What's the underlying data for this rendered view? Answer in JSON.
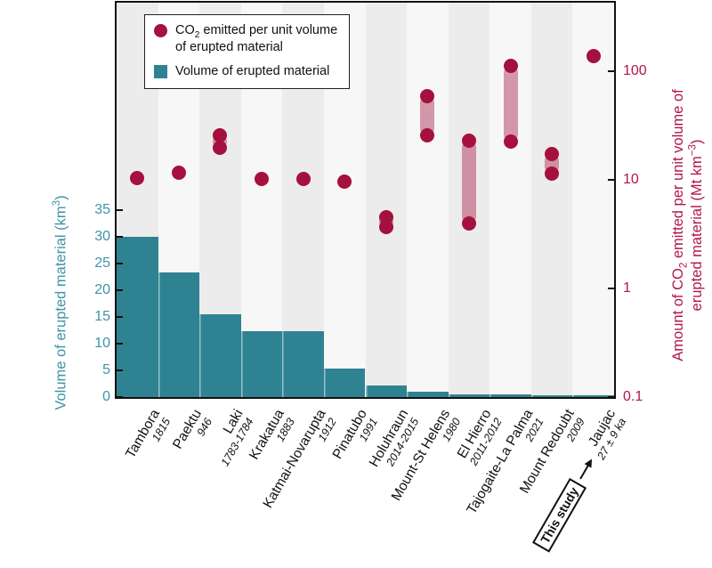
{
  "figure": {
    "description": "Comparison of erupted volume and CO2 emitted per unit volume for major volcanic eruptions"
  },
  "colors": {
    "bar_teal": "#2f8292",
    "dot_crimson": "#a5103e",
    "band_pink": "rgba(165,16,62,0.42)",
    "left_axis_text": "#3f93a8",
    "right_axis_text": "#b2164a",
    "stripe_dark": "#ececec",
    "stripe_light": "#f7f7f7",
    "axis_line": "#111111"
  },
  "legend": {
    "items": [
      {
        "marker": "circle",
        "color": "#a5103e",
        "segments": [
          {
            "t": "CO"
          },
          {
            "t": "2",
            "sub": true
          },
          {
            "t": " emitted per unit volume of erupted material"
          }
        ]
      },
      {
        "marker": "square",
        "color": "#2f8292",
        "segments": [
          {
            "t": "Volume of erupted material"
          }
        ]
      }
    ]
  },
  "left_axis_title_segments": [
    {
      "t": "Volume of erupted material (km"
    },
    {
      "t": "3",
      "sup": true
    },
    {
      "t": ")"
    }
  ],
  "right_axis_title_line1_segments": [
    {
      "t": "Amount of CO"
    },
    {
      "t": "2",
      "sub": true
    },
    {
      "t": " emitted per unit volume of"
    }
  ],
  "right_axis_title_line2_segments": [
    {
      "t": "erupted material (Mt km"
    },
    {
      "t": "−3",
      "sup": true
    },
    {
      "t": ")"
    }
  ],
  "annotation": {
    "label": "This study",
    "target_category": "Jaujac"
  },
  "chart_data": {
    "type": "combo-bar-scatter-dual-axis",
    "categories": [
      "Tambora",
      "Paektu",
      "Laki",
      "Krakatua",
      "Katmai-Novarupta",
      "Pinatubo",
      "Holuhraun",
      "Mount-St Helens",
      "El Hierro",
      "Tajogaite-La Palma",
      "Mount Redoubt",
      "Jaujac"
    ],
    "category_years": [
      "1815",
      "946",
      "1783-1784",
      "1883",
      "1912",
      "1991",
      "2014-2015",
      "1980",
      "2011-2012",
      "2021",
      "2009",
      "27 ± 9 ka"
    ],
    "series": [
      {
        "name": "Volume of erupted material",
        "type": "bar",
        "axis": "left",
        "unit": "km3",
        "values": [
          30,
          23.3,
          15.5,
          12.3,
          12.3,
          5.3,
          2.2,
          1.0,
          0.5,
          0.5,
          0.3,
          0.4
        ]
      },
      {
        "name": "CO2 emitted per unit volume of erupted material",
        "type": "scatter-range",
        "axis": "right",
        "unit": "Mt km-3",
        "values": [
          [
            10.4
          ],
          [
            11.6
          ],
          [
            19.7,
            25.7
          ],
          [
            10.2
          ],
          [
            10.2
          ],
          [
            9.6
          ],
          [
            3.7,
            4.5
          ],
          [
            25.7,
            59
          ],
          [
            4,
            23
          ],
          [
            22.5,
            112
          ],
          [
            11.4,
            17.3
          ],
          [
            138
          ]
        ]
      }
    ],
    "left_axis": {
      "label": "Volume of erupted material (km3)",
      "ticks": [
        0,
        5,
        10,
        15,
        20,
        25,
        30,
        35
      ],
      "range": [
        0,
        74
      ]
    },
    "right_axis": {
      "label": "Amount of CO2 emitted per unit volume of erupted material (Mt km-3)",
      "scale": "log",
      "ticks": [
        0.1,
        1,
        10,
        100
      ],
      "range": [
        0.1,
        430
      ]
    },
    "legend_position": "top-left",
    "grid": false,
    "background_stripes": true
  }
}
